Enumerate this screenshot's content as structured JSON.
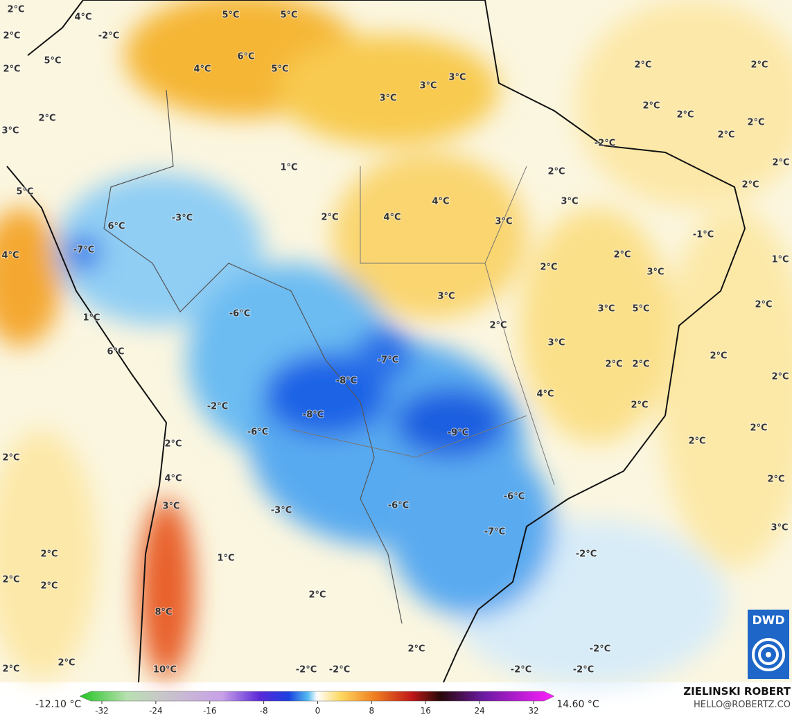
{
  "map": {
    "labels": [
      "2°C",
      "4°C",
      "-2°C",
      "5°C",
      "5°C",
      "2°C",
      "6°C",
      "4°C",
      "5°C",
      "5°C",
      "2°C",
      "3°C",
      "3°C",
      "3°C",
      "2°C",
      "2°C",
      "2°C",
      "2°C",
      "2°C",
      "2°C",
      "-2°C",
      "2°C",
      "3°C",
      "1°C",
      "2°C",
      "2°C",
      "2°C",
      "5°C",
      "4°C",
      "3°C",
      "2°C",
      "4°C",
      "-3°C",
      "6°C",
      "3°C",
      "-1°C",
      "-7°C",
      "4°C",
      "1°C",
      "2°C",
      "2°C",
      "3°C",
      "3°C",
      "-6°C",
      "2°C",
      "3°C",
      "5°C",
      "1°C",
      "2°C",
      "3°C",
      "6°C",
      "-7°C",
      "2°C",
      "2°C",
      "2°C",
      "2°C",
      "-8°C",
      "4°C",
      "-2°C",
      "2°C",
      "-8°C",
      "-9°C",
      "2°C",
      "-6°C",
      "2°C",
      "2°C",
      "2°C",
      "4°C",
      "2°C",
      "-6°C",
      "3°C",
      "-6°C",
      "-3°C",
      "3°C",
      "-7°C",
      "2°C",
      "1°C",
      "-2°C",
      "2°C",
      "2°C",
      "2°C",
      "8°C",
      "2°C",
      "-2°C",
      "2°C",
      "2°C",
      "10°C",
      "-2°C",
      "-2°C",
      "-2°C",
      "-2°C"
    ]
  },
  "colorbar": {
    "min_label": "-12.10 °C",
    "max_label": "14.60 °C",
    "ticks": [
      -32,
      -24,
      -16,
      -8,
      0,
      8,
      16,
      24,
      32
    ]
  },
  "credits": {
    "author": "ZIELINSKI ROBERT",
    "contact": "HELLO@ROBERTZ.CO",
    "logo": "DWD"
  }
}
